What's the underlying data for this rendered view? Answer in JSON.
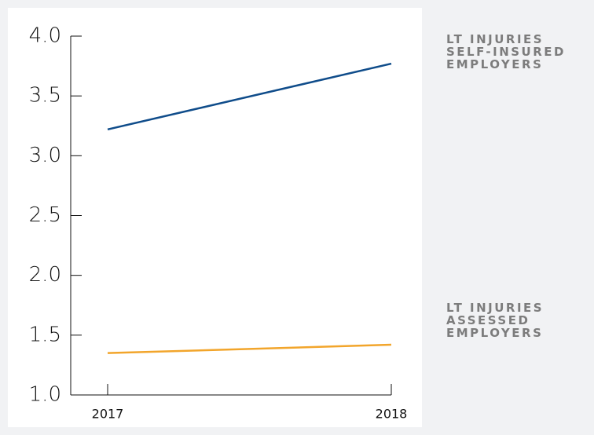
{
  "chart_data": {
    "type": "line",
    "categories": [
      "2017",
      "2018"
    ],
    "series": [
      {
        "name": "LT INJURIES SELF-INSURED EMPLOYERS",
        "color": "#0f4c8a",
        "values": [
          3.22,
          3.77
        ]
      },
      {
        "name": "LT INJURIES ASSESSED EMPLOYERS",
        "color": "#f2a52b",
        "values": [
          1.35,
          1.42
        ]
      }
    ],
    "ylim": [
      1,
      4
    ],
    "yticks": [
      {
        "value": 1,
        "label": "1.0"
      },
      {
        "value": 1.5,
        "label": "1.5"
      },
      {
        "value": 2,
        "label": "2.0"
      },
      {
        "value": 2.5,
        "label": "2.5"
      },
      {
        "value": 3,
        "label": "3.0"
      },
      {
        "value": 3.5,
        "label": "3.5"
      },
      {
        "value": 4,
        "label": "4.0"
      }
    ]
  }
}
